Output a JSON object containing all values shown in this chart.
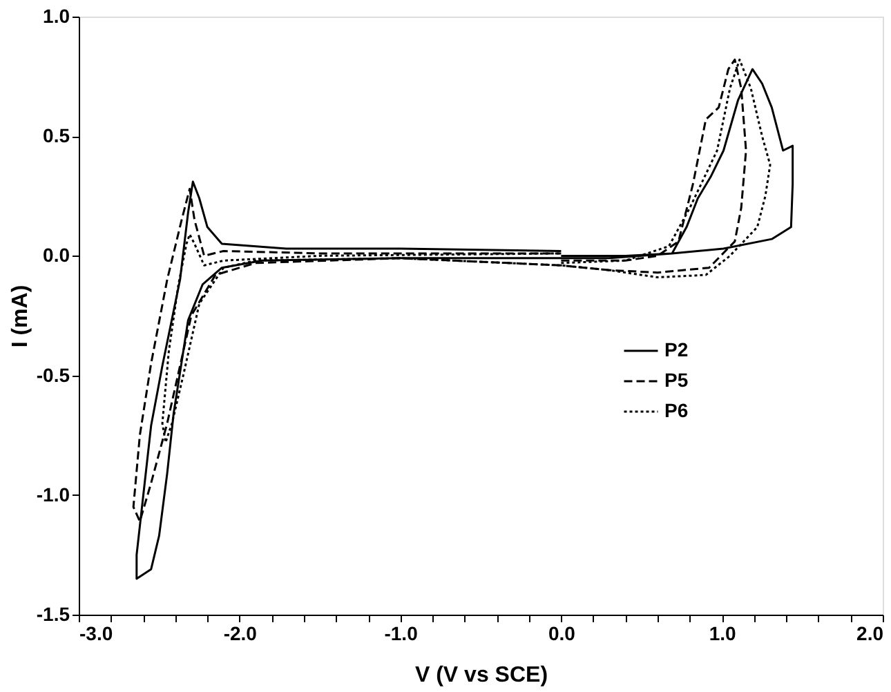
{
  "chart_data": {
    "type": "line",
    "xlabel": "V (V vs SCE)",
    "ylabel": "I (mA)",
    "xlim": [
      -3,
      2
    ],
    "ylim": [
      -1.5,
      1
    ],
    "xticks": [
      {
        "value": -3,
        "label": "-3.0"
      },
      {
        "value": -2.8,
        "label": null
      },
      {
        "value": -2.6,
        "label": null
      },
      {
        "value": -2.4,
        "label": null
      },
      {
        "value": -2.2,
        "label": null
      },
      {
        "value": -2,
        "label": "-2.0"
      },
      {
        "value": -1.8,
        "label": null
      },
      {
        "value": -1.6,
        "label": null
      },
      {
        "value": -1.4,
        "label": null
      },
      {
        "value": -1.2,
        "label": null
      },
      {
        "value": -1,
        "label": "-1.0"
      },
      {
        "value": -0.8,
        "label": null
      },
      {
        "value": -0.6,
        "label": null
      },
      {
        "value": -0.4,
        "label": null
      },
      {
        "value": -0.2,
        "label": null
      },
      {
        "value": 0,
        "label": "0.0"
      },
      {
        "value": 0.2,
        "label": null
      },
      {
        "value": 0.4,
        "label": null
      },
      {
        "value": 0.6,
        "label": null
      },
      {
        "value": 0.8,
        "label": null
      },
      {
        "value": 1,
        "label": "1.0"
      },
      {
        "value": 1.2,
        "label": null
      },
      {
        "value": 1.4,
        "label": null
      },
      {
        "value": 1.6,
        "label": null
      },
      {
        "value": 1.8,
        "label": null
      },
      {
        "value": 2,
        "label": "2.0"
      }
    ],
    "yticks": [
      {
        "value": -1.5,
        "label": "-1.5"
      },
      {
        "value": -1,
        "label": "-1.0"
      },
      {
        "value": -0.5,
        "label": "-0.5"
      },
      {
        "value": 0,
        "label": "0.0"
      },
      {
        "value": 0.5,
        "label": "0.5"
      },
      {
        "value": 1,
        "label": "1.0"
      }
    ],
    "grid": false,
    "legend": "bottom right",
    "marker": "none",
    "series": [
      {
        "name": "P2",
        "color": "#000000",
        "line_style": "solid",
        "x": [
          0,
          0.4,
          0.69,
          0.78,
          0.85,
          0.93,
          1.01,
          1.1,
          1.19,
          1.25,
          1.31,
          1.38,
          1.44,
          1.44,
          1.43,
          1.31,
          1.01,
          0.69,
          0.3,
          0,
          -1.0,
          -1.86,
          -2.11,
          -2.23,
          -2.32,
          -2.41,
          -2.45,
          -2.5,
          -2.55,
          -2.64,
          -2.64,
          -2.6,
          -2.55,
          -2.48,
          -2.37,
          -2.32,
          -2.29,
          -2.25,
          -2.2,
          -2.11,
          -1.71,
          -1.0,
          0
        ],
        "values": [
          0.0,
          0.0,
          0.01,
          0.12,
          0.24,
          0.33,
          0.44,
          0.65,
          0.78,
          0.72,
          0.62,
          0.44,
          0.46,
          0.3,
          0.12,
          0.07,
          0.03,
          0.01,
          -0.01,
          -0.01,
          -0.01,
          -0.02,
          -0.05,
          -0.12,
          -0.27,
          -0.66,
          -0.91,
          -1.17,
          -1.31,
          -1.35,
          -1.25,
          -1.01,
          -0.71,
          -0.46,
          -0.1,
          0.18,
          0.31,
          0.24,
          0.12,
          0.05,
          0.03,
          0.03,
          0.02
        ]
      },
      {
        "name": "P5",
        "color": "#000000",
        "line_style": "dashed",
        "x": [
          0,
          0.4,
          0.6,
          0.73,
          0.82,
          0.9,
          0.98,
          1.04,
          1.08,
          1.12,
          1.15,
          1.12,
          1.08,
          0.92,
          0.6,
          0.3,
          0,
          -1.0,
          -1.9,
          -2.15,
          -2.3,
          -2.45,
          -2.55,
          -2.62,
          -2.66,
          -2.62,
          -2.55,
          -2.45,
          -2.36,
          -2.31,
          -2.28,
          -2.22,
          -2.1,
          -1.5,
          0
        ],
        "values": [
          -0.02,
          -0.02,
          0.0,
          0.06,
          0.3,
          0.57,
          0.62,
          0.78,
          0.82,
          0.7,
          0.44,
          0.2,
          0.06,
          -0.05,
          -0.07,
          -0.06,
          -0.04,
          -0.01,
          -0.03,
          -0.08,
          -0.25,
          -0.7,
          -0.95,
          -1.11,
          -1.05,
          -0.75,
          -0.45,
          -0.1,
          0.15,
          0.28,
          0.15,
          0.0,
          0.02,
          0.01,
          0.01
        ]
      },
      {
        "name": "P6",
        "color": "#000000",
        "line_style": "dotted",
        "x": [
          0,
          0.4,
          0.67,
          0.8,
          0.97,
          1.05,
          1.11,
          1.18,
          1.25,
          1.3,
          1.27,
          1.22,
          1.05,
          0.9,
          0.6,
          0.3,
          0,
          -1.0,
          -1.9,
          -2.1,
          -2.25,
          -2.35,
          -2.42,
          -2.46,
          -2.48,
          -2.44,
          -2.38,
          -2.33,
          -2.31,
          -2.28,
          -2.22,
          -2.1,
          -1.5,
          0
        ],
        "values": [
          -0.03,
          -0.02,
          0.04,
          0.2,
          0.44,
          0.7,
          0.82,
          0.7,
          0.5,
          0.38,
          0.25,
          0.12,
          0.0,
          -0.08,
          -0.09,
          -0.06,
          -0.04,
          -0.01,
          -0.02,
          -0.05,
          -0.2,
          -0.5,
          -0.7,
          -0.78,
          -0.7,
          -0.4,
          -0.12,
          0.05,
          0.09,
          0.05,
          -0.04,
          -0.02,
          0.0,
          0.01
        ]
      }
    ]
  }
}
